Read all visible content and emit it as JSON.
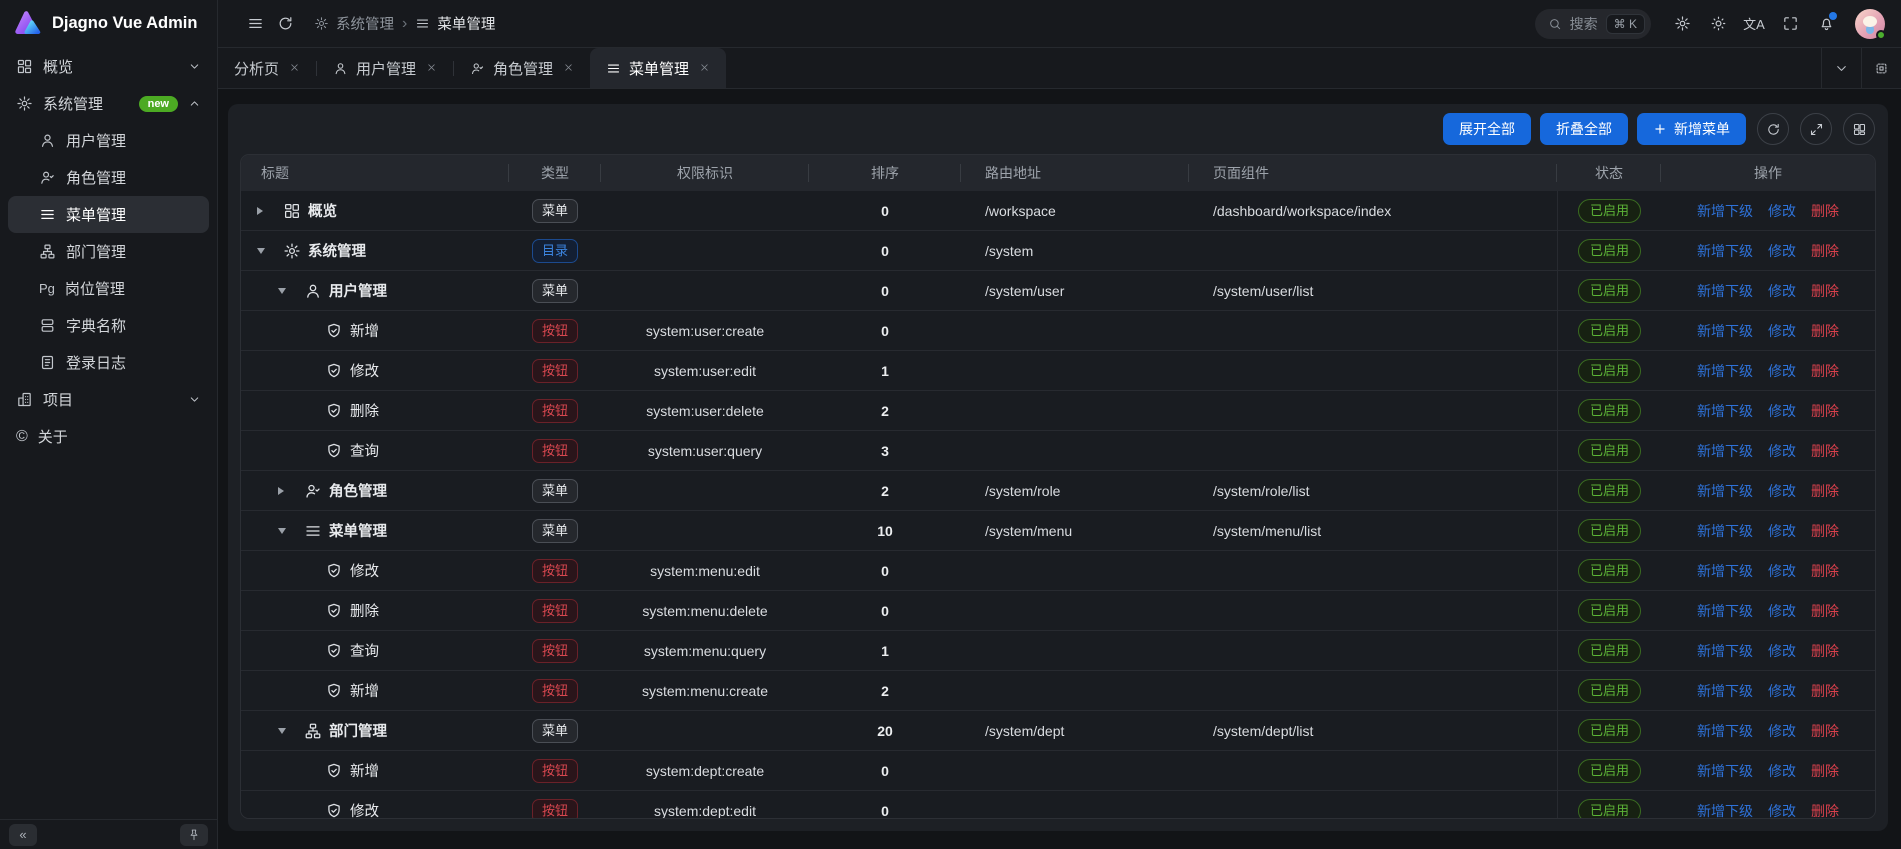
{
  "app": {
    "title": "Djagno Vue Admin"
  },
  "topbar": {
    "breadcrumb": [
      {
        "label": "系统管理",
        "icon": "gear-icon"
      },
      {
        "label": "菜单管理",
        "icon": "menu-icon"
      }
    ],
    "search": {
      "placeholder": "搜索",
      "shortcut": "⌘ K"
    }
  },
  "tabs": [
    {
      "label": "分析页",
      "icon": null,
      "active": false
    },
    {
      "label": "用户管理",
      "icon": "user-icon",
      "active": false
    },
    {
      "label": "角色管理",
      "icon": "user-check-icon",
      "active": false
    },
    {
      "label": "菜单管理",
      "icon": "menu-icon",
      "active": true
    }
  ],
  "sidebar": {
    "items": [
      {
        "label": "概览",
        "icon": "dashboard-icon",
        "expandable": true,
        "state": "collapsed"
      },
      {
        "label": "系统管理",
        "icon": "gear-icon",
        "badge": "new",
        "expandable": true,
        "state": "expanded"
      },
      {
        "label": "用户管理",
        "icon": "user-icon",
        "sub": true
      },
      {
        "label": "角色管理",
        "icon": "user-check-icon",
        "sub": true
      },
      {
        "label": "菜单管理",
        "icon": "menu-icon",
        "sub": true,
        "active": true
      },
      {
        "label": "部门管理",
        "icon": "org-icon",
        "sub": true
      },
      {
        "label": "岗位管理",
        "icon": "pg-icon",
        "sub": true
      },
      {
        "label": "字典名称",
        "icon": "dict-icon",
        "sub": true
      },
      {
        "label": "登录日志",
        "icon": "log-icon",
        "sub": true
      },
      {
        "label": "项目",
        "icon": "building-icon",
        "expandable": true,
        "state": "collapsed"
      },
      {
        "label": "关于",
        "icon": "copyright-icon"
      }
    ]
  },
  "toolbar": {
    "expand_all": "展开全部",
    "collapse_all": "折叠全部",
    "add_menu": "新增菜单"
  },
  "table": {
    "columns": [
      "标题",
      "类型",
      "权限标识",
      "排序",
      "路由地址",
      "页面组件",
      "状态",
      "操作"
    ],
    "actions": [
      "新增下级",
      "修改",
      "删除"
    ],
    "rows": [
      {
        "title": "概览",
        "icon": "dashboard",
        "level": 0,
        "expand": "closed",
        "type": "菜单",
        "type_style": "gray",
        "permission": "",
        "sort": "0",
        "route": "/workspace",
        "component": "/dashboard/workspace/index",
        "status": "已启用"
      },
      {
        "title": "系统管理",
        "icon": "gear",
        "level": 0,
        "expand": "open",
        "type": "目录",
        "type_style": "blue",
        "permission": "",
        "sort": "0",
        "route": "/system",
        "component": "",
        "status": "已启用"
      },
      {
        "title": "用户管理",
        "icon": "user",
        "level": 1,
        "expand": "open",
        "type": "菜单",
        "type_style": "gray",
        "permission": "",
        "sort": "0",
        "route": "/system/user",
        "component": "/system/user/list",
        "status": "已启用"
      },
      {
        "title": "新增",
        "icon": "shield",
        "level": 2,
        "expand": "",
        "type": "按钮",
        "type_style": "red",
        "permission": "system:user:create",
        "sort": "0",
        "route": "",
        "component": "",
        "status": "已启用"
      },
      {
        "title": "修改",
        "icon": "shield",
        "level": 2,
        "expand": "",
        "type": "按钮",
        "type_style": "red",
        "permission": "system:user:edit",
        "sort": "1",
        "route": "",
        "component": "",
        "status": "已启用"
      },
      {
        "title": "删除",
        "icon": "shield",
        "level": 2,
        "expand": "",
        "type": "按钮",
        "type_style": "red",
        "permission": "system:user:delete",
        "sort": "2",
        "route": "",
        "component": "",
        "status": "已启用"
      },
      {
        "title": "查询",
        "icon": "shield",
        "level": 2,
        "expand": "",
        "type": "按钮",
        "type_style": "red",
        "permission": "system:user:query",
        "sort": "3",
        "route": "",
        "component": "",
        "status": "已启用"
      },
      {
        "title": "角色管理",
        "icon": "user-check",
        "level": 1,
        "expand": "closed",
        "type": "菜单",
        "type_style": "gray",
        "permission": "",
        "sort": "2",
        "route": "/system/role",
        "component": "/system/role/list",
        "status": "已启用"
      },
      {
        "title": "菜单管理",
        "icon": "menu",
        "level": 1,
        "expand": "open",
        "type": "菜单",
        "type_style": "gray",
        "permission": "",
        "sort": "10",
        "route": "/system/menu",
        "component": "/system/menu/list",
        "status": "已启用"
      },
      {
        "title": "修改",
        "icon": "shield",
        "level": 2,
        "expand": "",
        "type": "按钮",
        "type_style": "red",
        "permission": "system:menu:edit",
        "sort": "0",
        "route": "",
        "component": "",
        "status": "已启用"
      },
      {
        "title": "删除",
        "icon": "shield",
        "level": 2,
        "expand": "",
        "type": "按钮",
        "type_style": "red",
        "permission": "system:menu:delete",
        "sort": "0",
        "route": "",
        "component": "",
        "status": "已启用"
      },
      {
        "title": "查询",
        "icon": "shield",
        "level": 2,
        "expand": "",
        "type": "按钮",
        "type_style": "red",
        "permission": "system:menu:query",
        "sort": "1",
        "route": "",
        "component": "",
        "status": "已启用"
      },
      {
        "title": "新增",
        "icon": "shield",
        "level": 2,
        "expand": "",
        "type": "按钮",
        "type_style": "red",
        "permission": "system:menu:create",
        "sort": "2",
        "route": "",
        "component": "",
        "status": "已启用"
      },
      {
        "title": "部门管理",
        "icon": "org",
        "level": 1,
        "expand": "open",
        "type": "菜单",
        "type_style": "gray",
        "permission": "",
        "sort": "20",
        "route": "/system/dept",
        "component": "/system/dept/list",
        "status": "已启用"
      },
      {
        "title": "新增",
        "icon": "shield",
        "level": 2,
        "expand": "",
        "type": "按钮",
        "type_style": "red",
        "permission": "system:dept:create",
        "sort": "0",
        "route": "",
        "component": "",
        "status": "已启用"
      },
      {
        "title": "修改",
        "icon": "shield",
        "level": 2,
        "expand": "",
        "type": "按钮",
        "type_style": "red",
        "permission": "system:dept:edit",
        "sort": "0",
        "route": "",
        "component": "",
        "status": "已启用"
      }
    ]
  },
  "colors": {
    "primary_blue": "#1668dc",
    "danger_red": "#d8404c",
    "success_green": "#5cb337",
    "badge_new_green": "#4caa23",
    "notification_dot_blue": "#2478e6"
  }
}
